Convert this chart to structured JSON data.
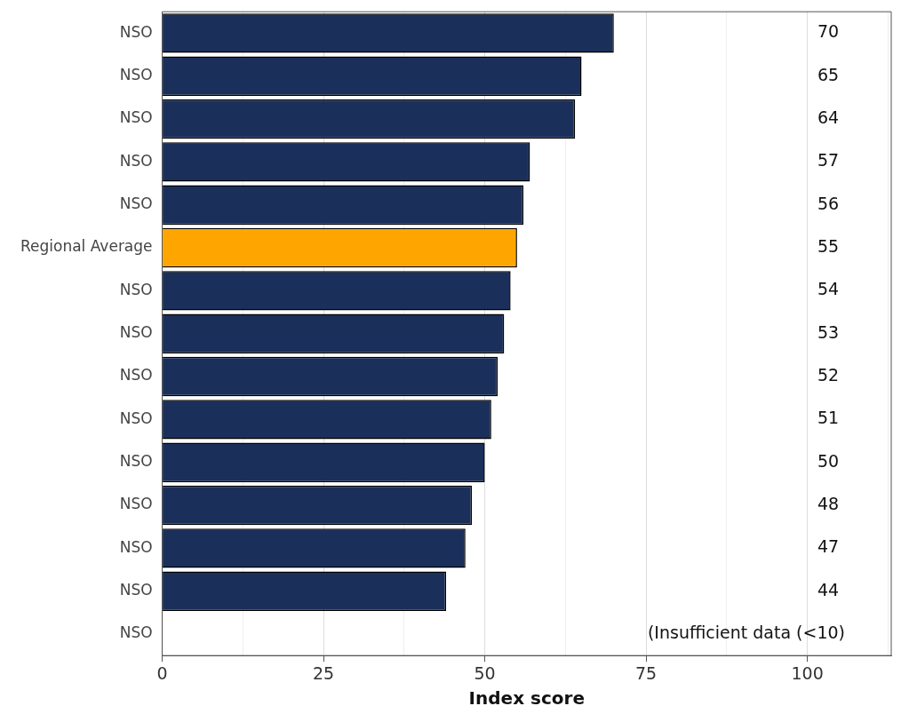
{
  "chart_data": {
    "type": "bar",
    "orientation": "horizontal",
    "xlabel": "Index score",
    "categories": [
      "NSO",
      "NSO",
      "NSO",
      "NSO",
      "NSO",
      "Regional Average",
      "NSO",
      "NSO",
      "NSO",
      "NSO",
      "NSO",
      "NSO",
      "NSO",
      "NSO",
      "NSO"
    ],
    "values": [
      70,
      65,
      64,
      57,
      56,
      55,
      54,
      53,
      52,
      51,
      50,
      48,
      47,
      44,
      null
    ],
    "value_labels": [
      "70",
      "65",
      "64",
      "57",
      "56",
      "55",
      "54",
      "53",
      "52",
      "51",
      "50",
      "48",
      "47",
      "44",
      "(Insufficient data (<10)"
    ],
    "colors": [
      "#1b2f5b",
      "#1b2f5b",
      "#1b2f5b",
      "#1b2f5b",
      "#1b2f5b",
      "#ffa500",
      "#1b2f5b",
      "#1b2f5b",
      "#1b2f5b",
      "#1b2f5b",
      "#1b2f5b",
      "#1b2f5b",
      "#1b2f5b",
      "#1b2f5b",
      "#1b2f5b"
    ],
    "xlim": [
      0,
      113
    ],
    "xticks": [
      0,
      {
        "value": 12.5,
        "label": null
      },
      25,
      {
        "value": 37.5,
        "label": null
      },
      50,
      {
        "value": 62.5,
        "label": null
      },
      75,
      {
        "value": 87.5,
        "label": null
      },
      100,
      {
        "value": 112.5,
        "label": null
      }
    ],
    "grid": "x",
    "legend": false
  }
}
